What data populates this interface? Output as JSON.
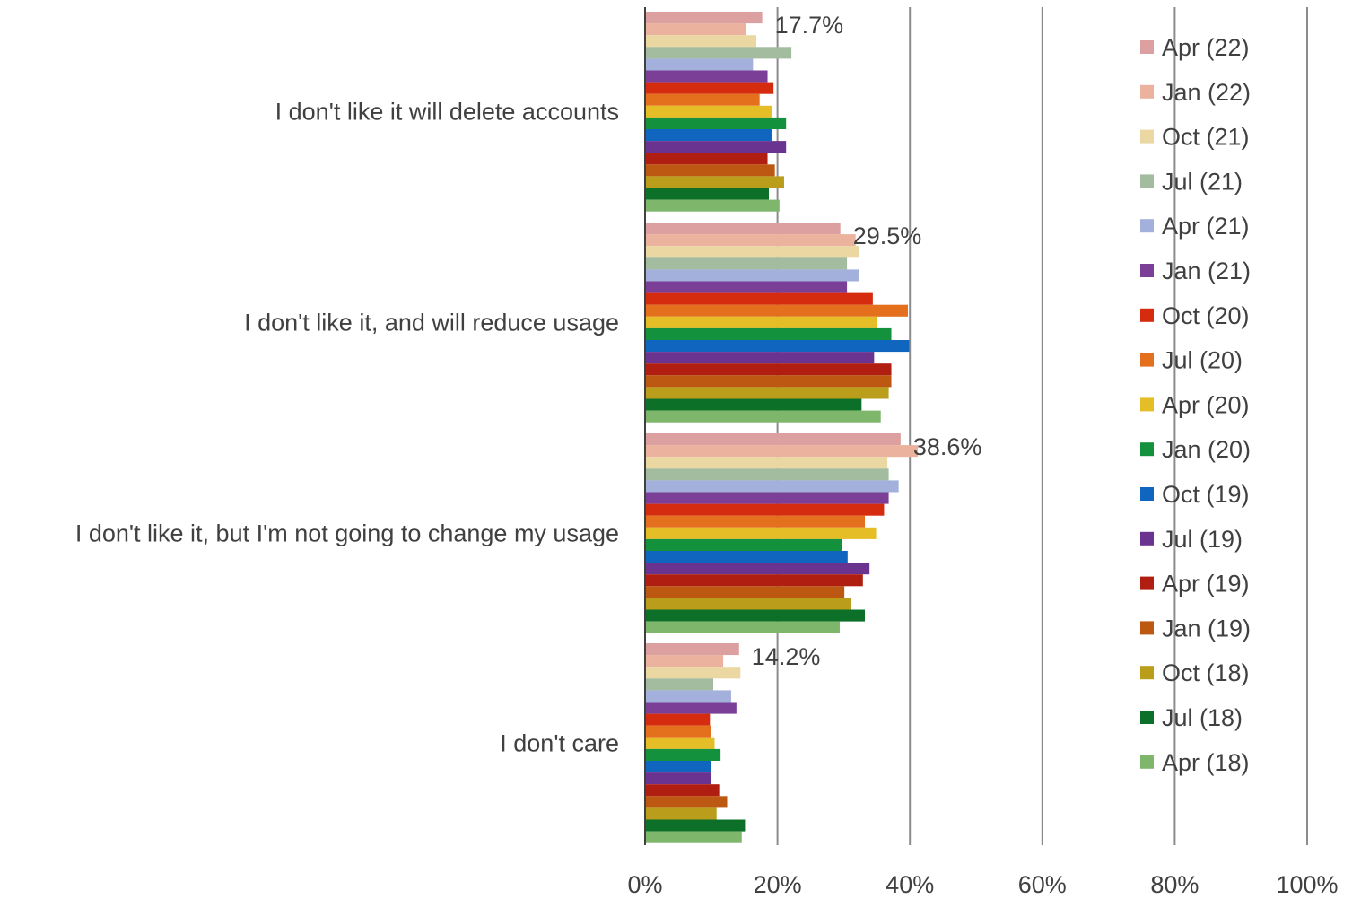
{
  "chart_data": {
    "type": "bar",
    "orientation": "horizontal",
    "categories": [
      "I don't like it will delete accounts",
      "I don't like it, and will reduce usage",
      "I don't like it, but I'm not going to change my usage",
      "I don't care"
    ],
    "xlim": [
      0,
      100
    ],
    "x_ticks": [
      "0%",
      "20%",
      "40%",
      "60%",
      "80%",
      "100%"
    ],
    "grid": "vertical",
    "legend_position": "right",
    "series": [
      {
        "name": "Apr (22)",
        "color": "#DDA0A0",
        "values": [
          17.7,
          29.5,
          38.6,
          14.2
        ]
      },
      {
        "name": "Jan (22)",
        "color": "#EBB29E",
        "values": [
          15.3,
          31.8,
          41.2,
          11.8
        ]
      },
      {
        "name": "Oct (21)",
        "color": "#EAD7A2",
        "values": [
          16.8,
          32.3,
          36.6,
          14.4
        ]
      },
      {
        "name": "Jul (21)",
        "color": "#A3BC9F",
        "values": [
          22.1,
          30.5,
          36.8,
          10.3
        ]
      },
      {
        "name": "Apr (21)",
        "color": "#A3B0DC",
        "values": [
          16.3,
          32.3,
          38.3,
          13.0
        ]
      },
      {
        "name": "Jan (21)",
        "color": "#7B3F98",
        "values": [
          18.5,
          30.5,
          36.8,
          13.8
        ]
      },
      {
        "name": "Oct (20)",
        "color": "#D52B0E",
        "values": [
          19.4,
          34.4,
          36.1,
          9.8
        ]
      },
      {
        "name": "Jul (20)",
        "color": "#E4701E",
        "values": [
          17.3,
          39.7,
          33.2,
          9.9
        ]
      },
      {
        "name": "Apr (20)",
        "color": "#E5BE27",
        "values": [
          19.1,
          35.1,
          34.9,
          10.5
        ]
      },
      {
        "name": "Jan (20)",
        "color": "#14913C",
        "values": [
          21.3,
          37.2,
          29.8,
          11.4
        ]
      },
      {
        "name": "Oct (19)",
        "color": "#1066BE",
        "values": [
          19.1,
          39.9,
          30.6,
          9.9
        ]
      },
      {
        "name": "Jul (19)",
        "color": "#6B3390",
        "values": [
          21.3,
          34.6,
          33.9,
          10.0
        ]
      },
      {
        "name": "Apr (19)",
        "color": "#AF1E10",
        "values": [
          18.5,
          37.2,
          32.9,
          11.2
        ]
      },
      {
        "name": "Jan (19)",
        "color": "#BD5813",
        "values": [
          19.6,
          37.2,
          30.1,
          12.4
        ]
      },
      {
        "name": "Oct (18)",
        "color": "#B99D1B",
        "values": [
          21.0,
          36.8,
          31.1,
          10.8
        ]
      },
      {
        "name": "Jul (18)",
        "color": "#0D7028",
        "values": [
          18.7,
          32.7,
          33.2,
          15.1
        ]
      },
      {
        "name": "Apr (18)",
        "color": "#7EB76C",
        "values": [
          20.3,
          35.6,
          29.4,
          14.6
        ]
      }
    ],
    "data_labels": [
      {
        "series": "Apr (22)",
        "category_index": 0,
        "text": "17.7%"
      },
      {
        "series": "Apr (22)",
        "category_index": 1,
        "text": "29.5%"
      },
      {
        "series": "Apr (22)",
        "category_index": 2,
        "text": "38.6%"
      },
      {
        "series": "Apr (22)",
        "category_index": 3,
        "text": "14.2%"
      }
    ]
  }
}
